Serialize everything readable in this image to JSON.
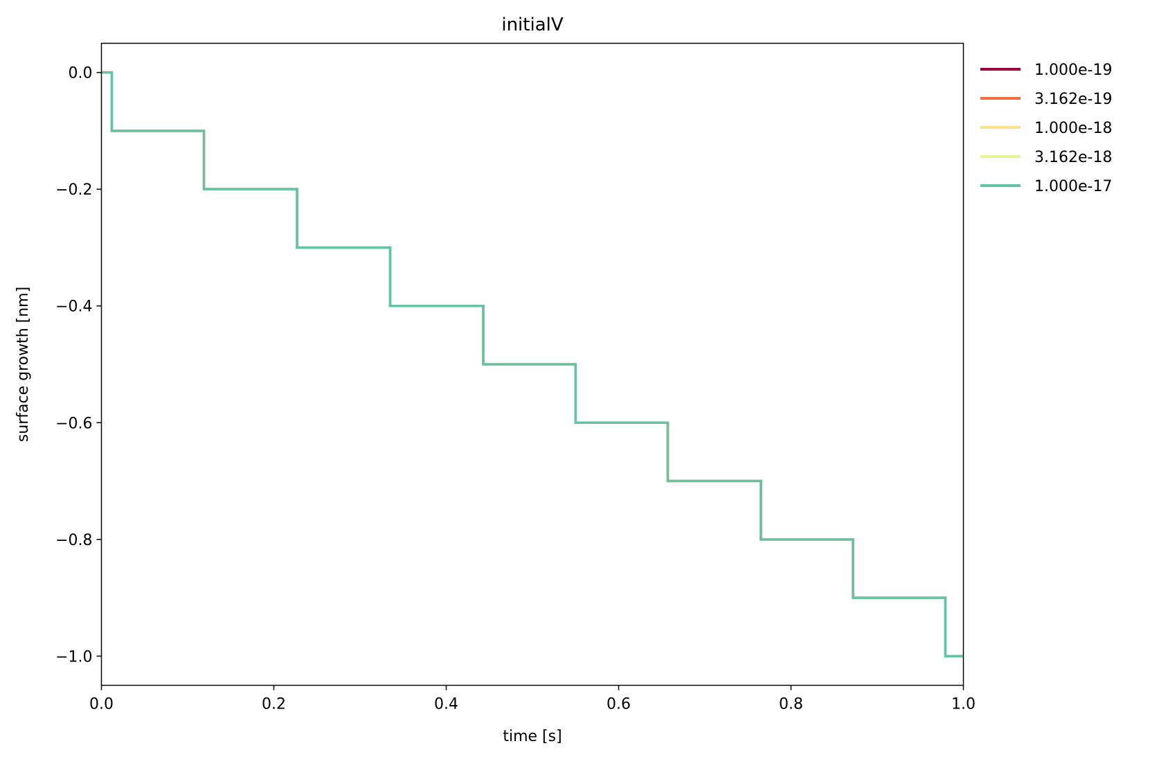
{
  "chart_data": {
    "type": "line",
    "title": "initialV",
    "xlabel": "time [s]",
    "ylabel": "surface growth [nm]",
    "xlim": [
      0.0,
      1.0
    ],
    "ylim": [
      -1.05,
      0.05
    ],
    "xticks": [
      0.0,
      0.2,
      0.4,
      0.6,
      0.8,
      1.0
    ],
    "xtick_labels": [
      "0.0",
      "0.2",
      "0.4",
      "0.6",
      "0.8",
      "1.0"
    ],
    "yticks": [
      0.0,
      -0.2,
      -0.4,
      -0.6,
      -0.8,
      -1.0
    ],
    "ytick_labels": [
      "0.0",
      "−0.2",
      "−0.4",
      "−0.6",
      "−0.8",
      "−1.0"
    ],
    "grid": false,
    "legend_position": "outside-right-top",
    "series": [
      {
        "name": "1.000e-19",
        "color": "#9e0142",
        "x": [
          0.0,
          0.012,
          0.012,
          0.119,
          0.119,
          0.227,
          0.227,
          0.335,
          0.335,
          0.443,
          0.443,
          0.55,
          0.55,
          0.657,
          0.657,
          0.765,
          0.765,
          0.872,
          0.872,
          0.979,
          0.979,
          1.0
        ],
        "y": [
          0.0,
          0.0,
          -0.1,
          -0.1,
          -0.2,
          -0.2,
          -0.3,
          -0.3,
          -0.4,
          -0.4,
          -0.5,
          -0.5,
          -0.6,
          -0.6,
          -0.7,
          -0.7,
          -0.8,
          -0.8,
          -0.9,
          -0.9,
          -1.0,
          -1.0
        ]
      },
      {
        "name": "3.162e-19",
        "color": "#f46d43",
        "x": [
          0.0,
          0.012,
          0.012,
          0.119,
          0.119,
          0.227,
          0.227,
          0.335,
          0.335,
          0.443,
          0.443,
          0.55,
          0.55,
          0.657,
          0.657,
          0.765,
          0.765,
          0.872,
          0.872,
          0.979,
          0.979,
          1.0
        ],
        "y": [
          0.0,
          0.0,
          -0.1,
          -0.1,
          -0.2,
          -0.2,
          -0.3,
          -0.3,
          -0.4,
          -0.4,
          -0.5,
          -0.5,
          -0.6,
          -0.6,
          -0.7,
          -0.7,
          -0.8,
          -0.8,
          -0.9,
          -0.9,
          -1.0,
          -1.0
        ]
      },
      {
        "name": "1.000e-18",
        "color": "#fee08b",
        "x": [
          0.0,
          0.012,
          0.012,
          0.119,
          0.119,
          0.227,
          0.227,
          0.335,
          0.335,
          0.443,
          0.443,
          0.55,
          0.55,
          0.657,
          0.657,
          0.765,
          0.765,
          0.872,
          0.872,
          0.979,
          0.979,
          1.0
        ],
        "y": [
          0.0,
          0.0,
          -0.1,
          -0.1,
          -0.2,
          -0.2,
          -0.3,
          -0.3,
          -0.4,
          -0.4,
          -0.5,
          -0.5,
          -0.6,
          -0.6,
          -0.7,
          -0.7,
          -0.8,
          -0.8,
          -0.9,
          -0.9,
          -1.0,
          -1.0
        ]
      },
      {
        "name": "3.162e-18",
        "color": "#e6f598",
        "x": [
          0.0,
          0.012,
          0.012,
          0.119,
          0.119,
          0.227,
          0.227,
          0.335,
          0.335,
          0.443,
          0.443,
          0.55,
          0.55,
          0.657,
          0.657,
          0.765,
          0.765,
          0.872,
          0.872,
          0.979,
          0.979,
          1.0
        ],
        "y": [
          0.0,
          0.0,
          -0.1,
          -0.1,
          -0.2,
          -0.2,
          -0.3,
          -0.3,
          -0.4,
          -0.4,
          -0.5,
          -0.5,
          -0.6,
          -0.6,
          -0.7,
          -0.7,
          -0.8,
          -0.8,
          -0.9,
          -0.9,
          -1.0,
          -1.0
        ]
      },
      {
        "name": "1.000e-17",
        "color": "#66c2a5",
        "x": [
          0.0,
          0.012,
          0.012,
          0.119,
          0.119,
          0.227,
          0.227,
          0.335,
          0.335,
          0.443,
          0.443,
          0.55,
          0.55,
          0.657,
          0.657,
          0.765,
          0.765,
          0.872,
          0.872,
          0.979,
          0.979,
          1.0
        ],
        "y": [
          0.0,
          0.0,
          -0.1,
          -0.1,
          -0.2,
          -0.2,
          -0.3,
          -0.3,
          -0.4,
          -0.4,
          -0.5,
          -0.5,
          -0.6,
          -0.6,
          -0.7,
          -0.7,
          -0.8,
          -0.8,
          -0.9,
          -0.9,
          -1.0,
          -1.0
        ]
      }
    ]
  }
}
